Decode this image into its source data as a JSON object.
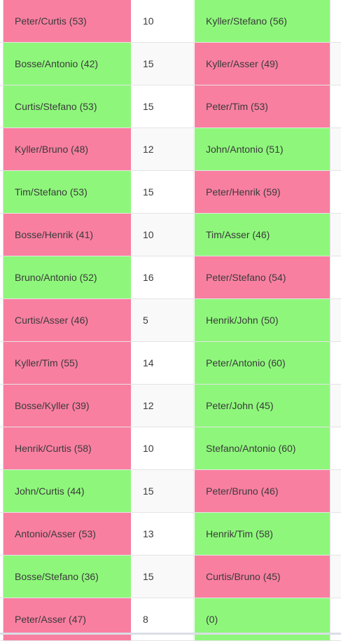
{
  "colors": {
    "win": "#8ef77b",
    "lose": "#f97fa1"
  },
  "matches": [
    {
      "team_a": "Peter/Curtis (53)",
      "a_result": "lose",
      "score": "10",
      "team_b": "Kyller/Stefano (56)",
      "b_result": "win"
    },
    {
      "team_a": "Bosse/Antonio (42)",
      "a_result": "win",
      "score": "15",
      "team_b": "Kyller/Asser (49)",
      "b_result": "lose"
    },
    {
      "team_a": "Curtis/Stefano (53)",
      "a_result": "win",
      "score": "15",
      "team_b": "Peter/Tim (53)",
      "b_result": "lose"
    },
    {
      "team_a": "Kyller/Bruno (48)",
      "a_result": "lose",
      "score": "12",
      "team_b": "John/Antonio (51)",
      "b_result": "win"
    },
    {
      "team_a": "Tim/Stefano (53)",
      "a_result": "win",
      "score": "15",
      "team_b": "Peter/Henrik (59)",
      "b_result": "lose"
    },
    {
      "team_a": "Bosse/Henrik (41)",
      "a_result": "lose",
      "score": "10",
      "team_b": "Tim/Asser (46)",
      "b_result": "win"
    },
    {
      "team_a": "Bruno/Antonio (52)",
      "a_result": "win",
      "score": "16",
      "team_b": "Peter/Stefano (54)",
      "b_result": "lose"
    },
    {
      "team_a": "Curtis/Asser (46)",
      "a_result": "lose",
      "score": "5",
      "team_b": "Henrik/John (50)",
      "b_result": "win"
    },
    {
      "team_a": "Kyller/Tim (55)",
      "a_result": "lose",
      "score": "14",
      "team_b": "Peter/Antonio (60)",
      "b_result": "win"
    },
    {
      "team_a": "Bosse/Kyller (39)",
      "a_result": "lose",
      "score": "12",
      "team_b": "Peter/John (45)",
      "b_result": "win"
    },
    {
      "team_a": "Henrik/Curtis (58)",
      "a_result": "lose",
      "score": "10",
      "team_b": "Stefano/Antonio (60)",
      "b_result": "win"
    },
    {
      "team_a": "John/Curtis (44)",
      "a_result": "win",
      "score": "15",
      "team_b": "Peter/Bruno (46)",
      "b_result": "lose"
    },
    {
      "team_a": "Antonio/Asser (53)",
      "a_result": "lose",
      "score": "13",
      "team_b": "Henrik/Tim (58)",
      "b_result": "win"
    },
    {
      "team_a": "Bosse/Stefano (36)",
      "a_result": "win",
      "score": "15",
      "team_b": "Curtis/Bruno (45)",
      "b_result": "lose"
    },
    {
      "team_a": "Peter/Asser (47)",
      "a_result": "lose",
      "score": "8",
      "team_b": "(0)",
      "b_result": "win"
    }
  ]
}
